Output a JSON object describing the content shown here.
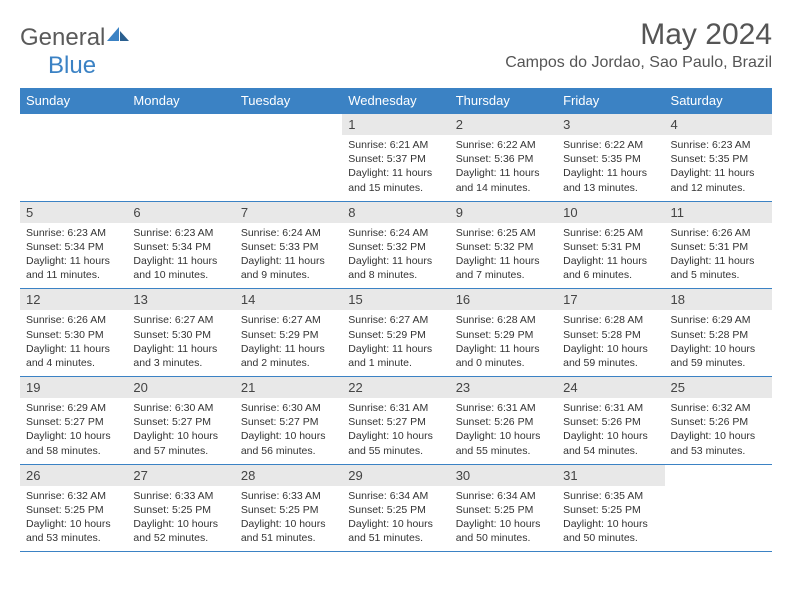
{
  "logo": {
    "part1": "General",
    "part2": "Blue"
  },
  "title": "May 2024",
  "location": "Campos do Jordao, Sao Paulo, Brazil",
  "colors": {
    "header_bg": "#3b82c4",
    "header_text": "#ffffff",
    "daynum_bg": "#e8e8e8",
    "border": "#3b82c4",
    "body_text": "#333333",
    "logo_gray": "#5a5a5a",
    "logo_blue": "#3b82c4"
  },
  "typography": {
    "title_fontsize": 30,
    "location_fontsize": 16,
    "dayhead_fontsize": 13,
    "cell_fontsize": 10.5
  },
  "day_headers": [
    "Sunday",
    "Monday",
    "Tuesday",
    "Wednesday",
    "Thursday",
    "Friday",
    "Saturday"
  ],
  "weeks": [
    [
      null,
      null,
      null,
      {
        "n": "1",
        "sr": "6:21 AM",
        "ss": "5:37 PM",
        "dl": "11 hours and 15 minutes."
      },
      {
        "n": "2",
        "sr": "6:22 AM",
        "ss": "5:36 PM",
        "dl": "11 hours and 14 minutes."
      },
      {
        "n": "3",
        "sr": "6:22 AM",
        "ss": "5:35 PM",
        "dl": "11 hours and 13 minutes."
      },
      {
        "n": "4",
        "sr": "6:23 AM",
        "ss": "5:35 PM",
        "dl": "11 hours and 12 minutes."
      }
    ],
    [
      {
        "n": "5",
        "sr": "6:23 AM",
        "ss": "5:34 PM",
        "dl": "11 hours and 11 minutes."
      },
      {
        "n": "6",
        "sr": "6:23 AM",
        "ss": "5:34 PM",
        "dl": "11 hours and 10 minutes."
      },
      {
        "n": "7",
        "sr": "6:24 AM",
        "ss": "5:33 PM",
        "dl": "11 hours and 9 minutes."
      },
      {
        "n": "8",
        "sr": "6:24 AM",
        "ss": "5:32 PM",
        "dl": "11 hours and 8 minutes."
      },
      {
        "n": "9",
        "sr": "6:25 AM",
        "ss": "5:32 PM",
        "dl": "11 hours and 7 minutes."
      },
      {
        "n": "10",
        "sr": "6:25 AM",
        "ss": "5:31 PM",
        "dl": "11 hours and 6 minutes."
      },
      {
        "n": "11",
        "sr": "6:26 AM",
        "ss": "5:31 PM",
        "dl": "11 hours and 5 minutes."
      }
    ],
    [
      {
        "n": "12",
        "sr": "6:26 AM",
        "ss": "5:30 PM",
        "dl": "11 hours and 4 minutes."
      },
      {
        "n": "13",
        "sr": "6:27 AM",
        "ss": "5:30 PM",
        "dl": "11 hours and 3 minutes."
      },
      {
        "n": "14",
        "sr": "6:27 AM",
        "ss": "5:29 PM",
        "dl": "11 hours and 2 minutes."
      },
      {
        "n": "15",
        "sr": "6:27 AM",
        "ss": "5:29 PM",
        "dl": "11 hours and 1 minute."
      },
      {
        "n": "16",
        "sr": "6:28 AM",
        "ss": "5:29 PM",
        "dl": "11 hours and 0 minutes."
      },
      {
        "n": "17",
        "sr": "6:28 AM",
        "ss": "5:28 PM",
        "dl": "10 hours and 59 minutes."
      },
      {
        "n": "18",
        "sr": "6:29 AM",
        "ss": "5:28 PM",
        "dl": "10 hours and 59 minutes."
      }
    ],
    [
      {
        "n": "19",
        "sr": "6:29 AM",
        "ss": "5:27 PM",
        "dl": "10 hours and 58 minutes."
      },
      {
        "n": "20",
        "sr": "6:30 AM",
        "ss": "5:27 PM",
        "dl": "10 hours and 57 minutes."
      },
      {
        "n": "21",
        "sr": "6:30 AM",
        "ss": "5:27 PM",
        "dl": "10 hours and 56 minutes."
      },
      {
        "n": "22",
        "sr": "6:31 AM",
        "ss": "5:27 PM",
        "dl": "10 hours and 55 minutes."
      },
      {
        "n": "23",
        "sr": "6:31 AM",
        "ss": "5:26 PM",
        "dl": "10 hours and 55 minutes."
      },
      {
        "n": "24",
        "sr": "6:31 AM",
        "ss": "5:26 PM",
        "dl": "10 hours and 54 minutes."
      },
      {
        "n": "25",
        "sr": "6:32 AM",
        "ss": "5:26 PM",
        "dl": "10 hours and 53 minutes."
      }
    ],
    [
      {
        "n": "26",
        "sr": "6:32 AM",
        "ss": "5:25 PM",
        "dl": "10 hours and 53 minutes."
      },
      {
        "n": "27",
        "sr": "6:33 AM",
        "ss": "5:25 PM",
        "dl": "10 hours and 52 minutes."
      },
      {
        "n": "28",
        "sr": "6:33 AM",
        "ss": "5:25 PM",
        "dl": "10 hours and 51 minutes."
      },
      {
        "n": "29",
        "sr": "6:34 AM",
        "ss": "5:25 PM",
        "dl": "10 hours and 51 minutes."
      },
      {
        "n": "30",
        "sr": "6:34 AM",
        "ss": "5:25 PM",
        "dl": "10 hours and 50 minutes."
      },
      {
        "n": "31",
        "sr": "6:35 AM",
        "ss": "5:25 PM",
        "dl": "10 hours and 50 minutes."
      },
      null
    ]
  ],
  "labels": {
    "sunrise": "Sunrise: ",
    "sunset": "Sunset: ",
    "daylight": "Daylight: "
  }
}
